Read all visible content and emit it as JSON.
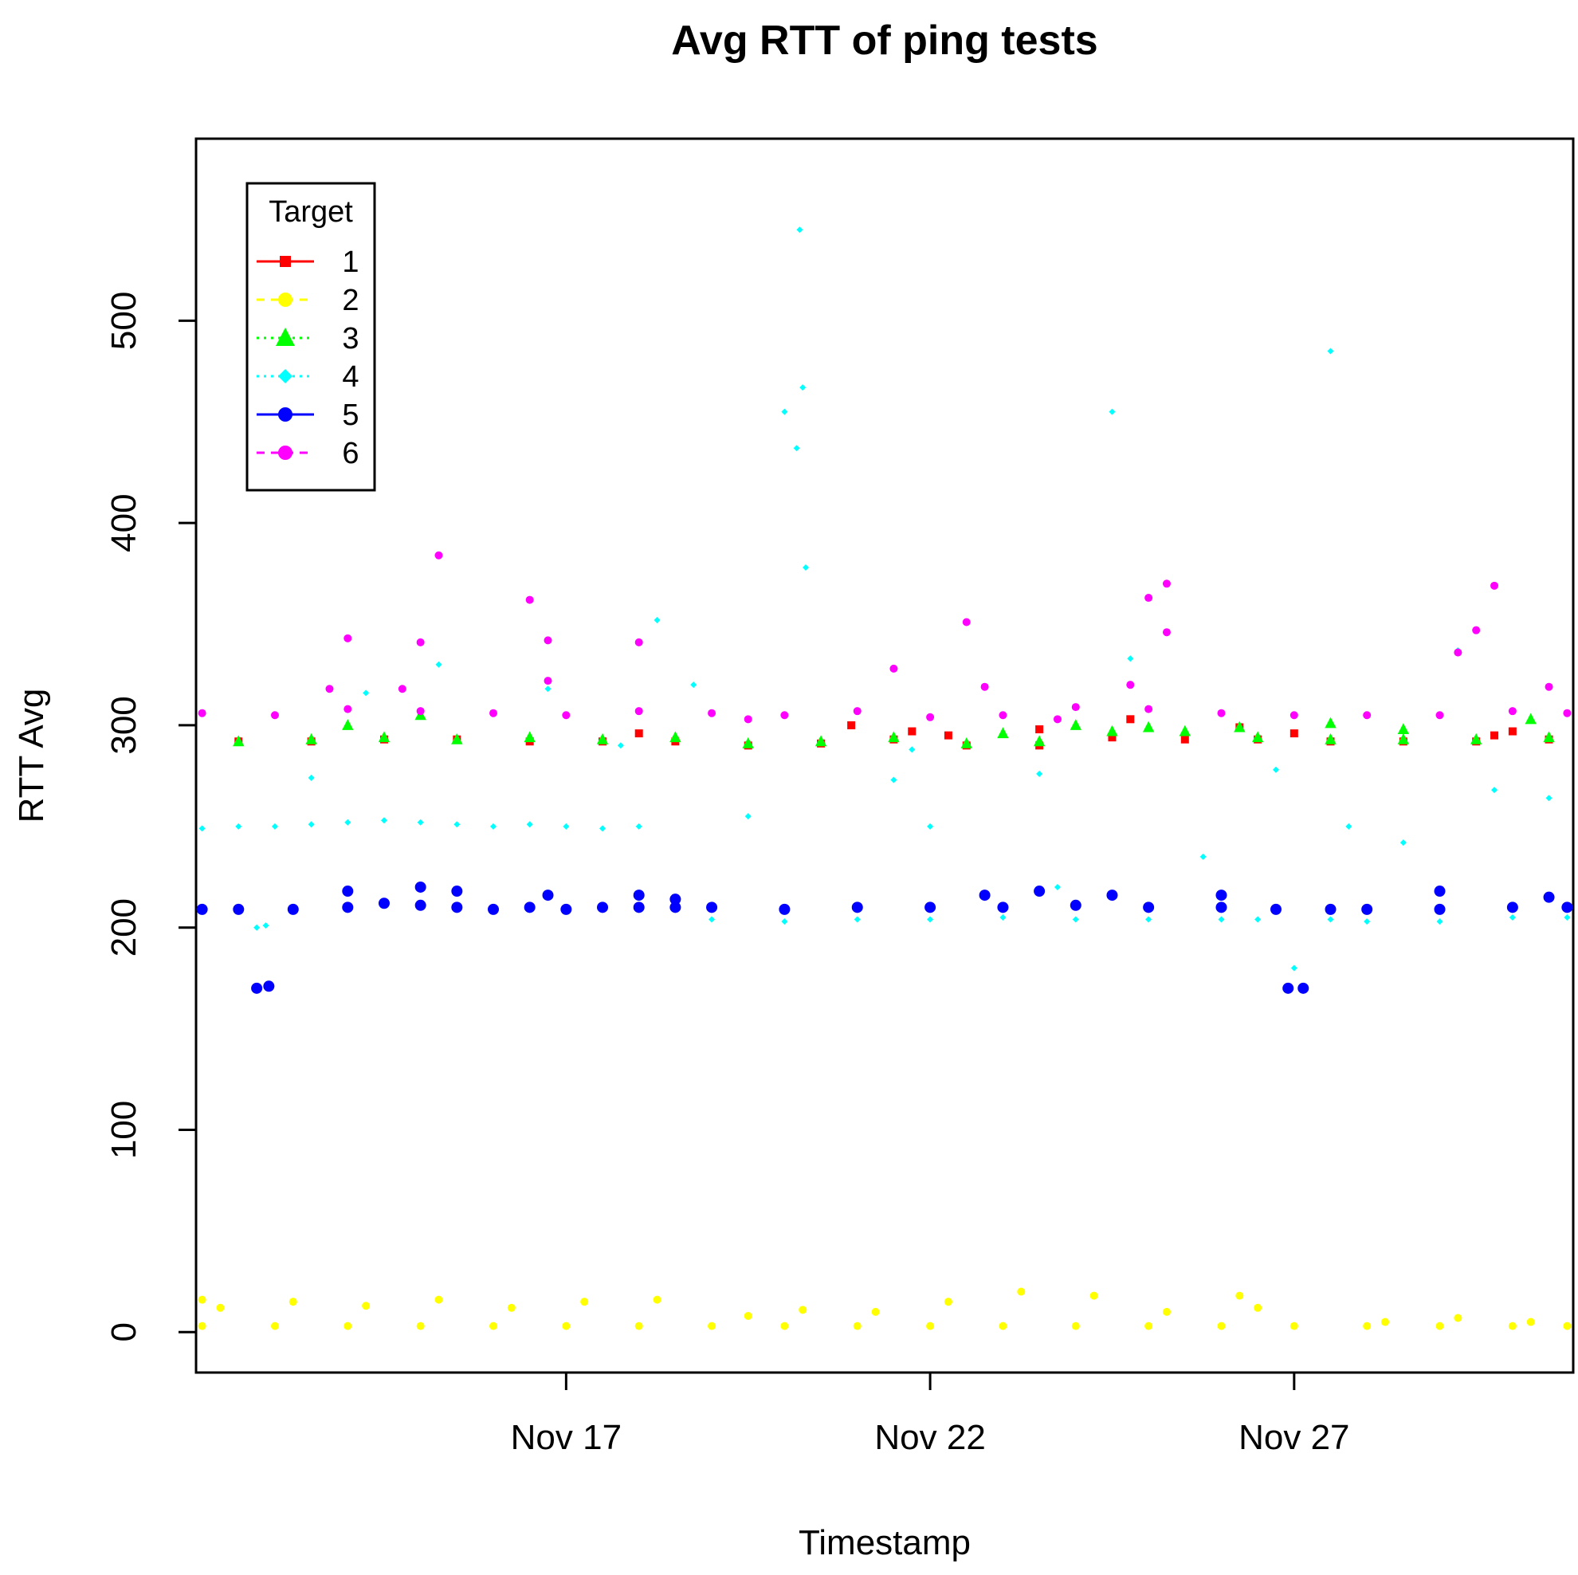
{
  "chart_data": {
    "type": "scatter",
    "title": "Avg RTT of ping tests",
    "xlabel": "Timestamp",
    "ylabel": "RTT Avg",
    "x_axis": {
      "kind": "date",
      "ticks": [
        {
          "date": "2014-11-17",
          "label": "Nov 17"
        },
        {
          "date": "2014-11-22",
          "label": "Nov 22"
        },
        {
          "date": "2014-11-27",
          "label": "Nov 27"
        }
      ],
      "xlim": [
        "2014-11-11T22:00",
        "2014-11-30T20:00"
      ]
    },
    "y_axis": {
      "ticks": [
        0,
        100,
        200,
        300,
        400,
        500
      ],
      "ylim": [
        -20,
        590
      ]
    },
    "grid": false,
    "legend": {
      "title": "Target",
      "placement": "top-left",
      "entries": [
        "1",
        "2",
        "3",
        "4",
        "5",
        "6"
      ]
    },
    "series": [
      {
        "name": "1",
        "color": "#ff0000",
        "marker": "square",
        "line": "solid",
        "points": [
          [
            "2014-11-12T12:00",
            292
          ],
          [
            "2014-11-13T12:00",
            292
          ],
          [
            "2014-11-14T12:00",
            293
          ],
          [
            "2014-11-15T12:00",
            293
          ],
          [
            "2014-11-16T12:00",
            292
          ],
          [
            "2014-11-17T12:00",
            292
          ],
          [
            "2014-11-18T12:00",
            292
          ],
          [
            "2014-11-19T12:00",
            290
          ],
          [
            "2014-11-20T12:00",
            291
          ],
          [
            "2014-11-21T12:00",
            293
          ],
          [
            "2014-11-22T12:00",
            290
          ],
          [
            "2014-11-23T12:00",
            290
          ],
          [
            "2014-11-24T12:00",
            294
          ],
          [
            "2014-11-25T12:00",
            293
          ],
          [
            "2014-11-26T12:00",
            293
          ],
          [
            "2014-11-27T12:00",
            292
          ],
          [
            "2014-11-28T12:00",
            292
          ],
          [
            "2014-11-29T12:00",
            292
          ],
          [
            "2014-11-30T12:00",
            293
          ],
          [
            "2014-11-20T22:00",
            300
          ],
          [
            "2014-11-21T18:00",
            297
          ],
          [
            "2014-11-22T06:00",
            295
          ],
          [
            "2014-11-23T12:00",
            298
          ],
          [
            "2014-11-24T18:00",
            303
          ],
          [
            "2014-11-26T06:00",
            299
          ],
          [
            "2014-11-27T00:00",
            296
          ],
          [
            "2014-11-29T18:00",
            295
          ],
          [
            "2014-11-18T00:00",
            296
          ],
          [
            "2014-11-30T00:00",
            297
          ]
        ]
      },
      {
        "name": "2",
        "color": "#ffff00",
        "marker": "circle",
        "line": "dashed",
        "points": [
          [
            "2014-11-12T00:00",
            3
          ],
          [
            "2014-11-13T00:00",
            3
          ],
          [
            "2014-11-14T00:00",
            3
          ],
          [
            "2014-11-15T00:00",
            3
          ],
          [
            "2014-11-16T00:00",
            3
          ],
          [
            "2014-11-17T00:00",
            3
          ],
          [
            "2014-11-18T00:00",
            3
          ],
          [
            "2014-11-19T00:00",
            3
          ],
          [
            "2014-11-20T00:00",
            3
          ],
          [
            "2014-11-21T00:00",
            3
          ],
          [
            "2014-11-22T00:00",
            3
          ],
          [
            "2014-11-23T00:00",
            3
          ],
          [
            "2014-11-24T00:00",
            3
          ],
          [
            "2014-11-25T00:00",
            3
          ],
          [
            "2014-11-26T00:00",
            3
          ],
          [
            "2014-11-27T00:00",
            3
          ],
          [
            "2014-11-28T00:00",
            3
          ],
          [
            "2014-11-29T00:00",
            3
          ],
          [
            "2014-11-30T00:00",
            3
          ],
          [
            "2014-11-30T18:00",
            3
          ],
          [
            "2014-11-12T00:00",
            16
          ],
          [
            "2014-11-12T06:00",
            12
          ],
          [
            "2014-11-13T06:00",
            15
          ],
          [
            "2014-11-14T06:00",
            13
          ],
          [
            "2014-11-15T06:00",
            16
          ],
          [
            "2014-11-16T06:00",
            12
          ],
          [
            "2014-11-17T06:00",
            15
          ],
          [
            "2014-11-18T06:00",
            16
          ],
          [
            "2014-11-19T12:00",
            8
          ],
          [
            "2014-11-20T06:00",
            11
          ],
          [
            "2014-11-21T06:00",
            10
          ],
          [
            "2014-11-22T06:00",
            15
          ],
          [
            "2014-11-23T06:00",
            20
          ],
          [
            "2014-11-24T06:00",
            18
          ],
          [
            "2014-11-25T06:00",
            10
          ],
          [
            "2014-11-26T06:00",
            18
          ],
          [
            "2014-11-26T12:00",
            12
          ],
          [
            "2014-11-28T06:00",
            5
          ],
          [
            "2014-11-29T06:00",
            7
          ],
          [
            "2014-11-30T06:00",
            5
          ]
        ]
      },
      {
        "name": "3",
        "color": "#00ff00",
        "marker": "triangle",
        "line": "dotted",
        "points": [
          [
            "2014-11-12T12:00",
            292
          ],
          [
            "2014-11-13T12:00",
            293
          ],
          [
            "2014-11-14T12:00",
            294
          ],
          [
            "2014-11-15T12:00",
            293
          ],
          [
            "2014-11-16T12:00",
            294
          ],
          [
            "2014-11-17T12:00",
            293
          ],
          [
            "2014-11-18T12:00",
            294
          ],
          [
            "2014-11-19T12:00",
            291
          ],
          [
            "2014-11-20T12:00",
            292
          ],
          [
            "2014-11-21T12:00",
            294
          ],
          [
            "2014-11-22T12:00",
            291
          ],
          [
            "2014-11-23T12:00",
            292
          ],
          [
            "2014-11-24T12:00",
            297
          ],
          [
            "2014-11-25T12:00",
            297
          ],
          [
            "2014-11-26T12:00",
            294
          ],
          [
            "2014-11-27T12:00",
            293
          ],
          [
            "2014-11-28T12:00",
            293
          ],
          [
            "2014-11-29T12:00",
            293
          ],
          [
            "2014-11-30T12:00",
            294
          ],
          [
            "2014-11-14T00:00",
            300
          ],
          [
            "2014-11-15T00:00",
            305
          ],
          [
            "2014-11-23T00:00",
            296
          ],
          [
            "2014-11-24T00:00",
            300
          ],
          [
            "2014-11-25T00:00",
            299
          ],
          [
            "2014-11-26T06:00",
            299
          ],
          [
            "2014-11-27T12:00",
            301
          ],
          [
            "2014-11-28T12:00",
            298
          ],
          [
            "2014-11-30T06:00",
            303
          ]
        ]
      },
      {
        "name": "4",
        "color": "#00ffff",
        "marker": "diamond",
        "line": "dotted",
        "points": [
          [
            "2014-11-12T00:00",
            249
          ],
          [
            "2014-11-12T12:00",
            250
          ],
          [
            "2014-11-13T00:00",
            250
          ],
          [
            "2014-11-13T12:00",
            251
          ],
          [
            "2014-11-14T00:00",
            252
          ],
          [
            "2014-11-14T12:00",
            253
          ],
          [
            "2014-11-15T00:00",
            252
          ],
          [
            "2014-11-15T12:00",
            251
          ],
          [
            "2014-11-16T00:00",
            250
          ],
          [
            "2014-11-16T12:00",
            251
          ],
          [
            "2014-11-17T00:00",
            250
          ],
          [
            "2014-11-17T12:00",
            249
          ],
          [
            "2014-11-18T00:00",
            250
          ],
          [
            "2014-11-12T18:00",
            200
          ],
          [
            "2014-11-12T21:00",
            201
          ],
          [
            "2014-11-19T00:00",
            204
          ],
          [
            "2014-11-20T00:00",
            203
          ],
          [
            "2014-11-21T00:00",
            204
          ],
          [
            "2014-11-22T00:00",
            204
          ],
          [
            "2014-11-23T00:00",
            205
          ],
          [
            "2014-11-24T00:00",
            204
          ],
          [
            "2014-11-25T00:00",
            204
          ],
          [
            "2014-11-26T00:00",
            204
          ],
          [
            "2014-11-26T12:00",
            204
          ],
          [
            "2014-11-27T00:00",
            180
          ],
          [
            "2014-11-27T12:00",
            204
          ],
          [
            "2014-11-28T00:00",
            203
          ],
          [
            "2014-11-29T00:00",
            203
          ],
          [
            "2014-11-30T00:00",
            205
          ],
          [
            "2014-11-30T18:00",
            205
          ],
          [
            "2014-11-20T05:00",
            545
          ],
          [
            "2014-11-20T06:00",
            467
          ],
          [
            "2014-11-20T04:00",
            437
          ],
          [
            "2014-11-20T00:00",
            455
          ],
          [
            "2014-11-20T07:00",
            378
          ],
          [
            "2014-11-27T12:00",
            485
          ],
          [
            "2014-11-24T12:00",
            455
          ],
          [
            "2014-11-18T06:00",
            352
          ],
          [
            "2014-11-24T18:00",
            333
          ],
          [
            "2014-11-15T06:00",
            330
          ],
          [
            "2014-11-14T06:00",
            316
          ],
          [
            "2014-11-13T12:00",
            274
          ],
          [
            "2014-11-18T18:00",
            320
          ],
          [
            "2014-11-19T12:00",
            255
          ],
          [
            "2014-11-21T12:00",
            273
          ],
          [
            "2014-11-22T00:00",
            250
          ],
          [
            "2014-11-23T12:00",
            276
          ],
          [
            "2014-11-25T18:00",
            235
          ],
          [
            "2014-11-26T18:00",
            278
          ],
          [
            "2014-11-27T18:00",
            250
          ],
          [
            "2014-11-28T12:00",
            242
          ],
          [
            "2014-11-29T06:00",
            337
          ],
          [
            "2014-11-29T18:00",
            268
          ],
          [
            "2014-11-30T12:00",
            264
          ],
          [
            "2014-11-16T18:00",
            318
          ],
          [
            "2014-11-17T18:00",
            290
          ],
          [
            "2014-11-21T18:00",
            288
          ],
          [
            "2014-11-23T18:00",
            220
          ]
        ]
      },
      {
        "name": "5",
        "color": "#0000ff",
        "marker": "circle",
        "line": "solid",
        "points": [
          [
            "2014-11-12T00:00",
            209
          ],
          [
            "2014-11-12T12:00",
            209
          ],
          [
            "2014-11-12T18:00",
            170
          ],
          [
            "2014-11-12T22:00",
            171
          ],
          [
            "2014-11-13T06:00",
            209
          ],
          [
            "2014-11-14T00:00",
            210
          ],
          [
            "2014-11-14T12:00",
            212
          ],
          [
            "2014-11-15T00:00",
            211
          ],
          [
            "2014-11-15T12:00",
            210
          ],
          [
            "2014-11-16T00:00",
            209
          ],
          [
            "2014-11-16T12:00",
            210
          ],
          [
            "2014-11-17T00:00",
            209
          ],
          [
            "2014-11-17T12:00",
            210
          ],
          [
            "2014-11-18T00:00",
            210
          ],
          [
            "2014-11-18T12:00",
            210
          ],
          [
            "2014-11-19T00:00",
            210
          ],
          [
            "2014-11-20T00:00",
            209
          ],
          [
            "2014-11-21T00:00",
            210
          ],
          [
            "2014-11-22T00:00",
            210
          ],
          [
            "2014-11-23T00:00",
            210
          ],
          [
            "2014-11-24T00:00",
            211
          ],
          [
            "2014-11-25T00:00",
            210
          ],
          [
            "2014-11-26T00:00",
            210
          ],
          [
            "2014-11-26T18:00",
            209
          ],
          [
            "2014-11-26T22:00",
            170
          ],
          [
            "2014-11-27T03:00",
            170
          ],
          [
            "2014-11-27T12:00",
            209
          ],
          [
            "2014-11-28T00:00",
            209
          ],
          [
            "2014-11-29T00:00",
            209
          ],
          [
            "2014-11-30T00:00",
            210
          ],
          [
            "2014-11-30T18:00",
            210
          ],
          [
            "2014-11-14T00:00",
            218
          ],
          [
            "2014-11-15T00:00",
            220
          ],
          [
            "2014-11-15T12:00",
            218
          ],
          [
            "2014-11-16T18:00",
            216
          ],
          [
            "2014-11-18T00:00",
            216
          ],
          [
            "2014-11-18T12:00",
            214
          ],
          [
            "2014-11-22T18:00",
            216
          ],
          [
            "2014-11-23T12:00",
            218
          ],
          [
            "2014-11-24T12:00",
            216
          ],
          [
            "2014-11-26T00:00",
            216
          ],
          [
            "2014-11-29T00:00",
            218
          ],
          [
            "2014-11-30T12:00",
            215
          ]
        ]
      },
      {
        "name": "6",
        "color": "#ff00ff",
        "marker": "circle",
        "line": "dashed",
        "points": [
          [
            "2014-11-12T00:00",
            306
          ],
          [
            "2014-11-13T00:00",
            305
          ],
          [
            "2014-11-14T00:00",
            308
          ],
          [
            "2014-11-15T00:00",
            307
          ],
          [
            "2014-11-16T00:00",
            306
          ],
          [
            "2014-11-17T00:00",
            305
          ],
          [
            "2014-11-18T00:00",
            307
          ],
          [
            "2014-11-19T00:00",
            306
          ],
          [
            "2014-11-19T12:00",
            303
          ],
          [
            "2014-11-20T00:00",
            305
          ],
          [
            "2014-11-21T00:00",
            307
          ],
          [
            "2014-11-22T00:00",
            304
          ],
          [
            "2014-11-23T00:00",
            305
          ],
          [
            "2014-11-23T18:00",
            303
          ],
          [
            "2014-11-24T00:00",
            309
          ],
          [
            "2014-11-25T00:00",
            308
          ],
          [
            "2014-11-26T00:00",
            306
          ],
          [
            "2014-11-27T00:00",
            305
          ],
          [
            "2014-11-28T00:00",
            305
          ],
          [
            "2014-11-29T00:00",
            305
          ],
          [
            "2014-11-30T00:00",
            307
          ],
          [
            "2014-11-30T18:00",
            306
          ],
          [
            "2014-11-15T06:00",
            384
          ],
          [
            "2014-11-16T12:00",
            362
          ],
          [
            "2014-11-16T18:00",
            342
          ],
          [
            "2014-11-15T00:00",
            341
          ],
          [
            "2014-11-14T00:00",
            343
          ],
          [
            "2014-11-18T00:00",
            341
          ],
          [
            "2014-11-22T12:00",
            351
          ],
          [
            "2014-11-25T06:00",
            370
          ],
          [
            "2014-11-25T00:00",
            363
          ],
          [
            "2014-11-25T06:00",
            346
          ],
          [
            "2014-11-29T18:00",
            369
          ],
          [
            "2014-11-29T12:00",
            347
          ],
          [
            "2014-11-29T06:00",
            336
          ],
          [
            "2014-11-21T12:00",
            328
          ],
          [
            "2014-11-16T18:00",
            322
          ],
          [
            "2014-11-22T18:00",
            319
          ],
          [
            "2014-11-24T18:00",
            320
          ],
          [
            "2014-11-30T12:00",
            319
          ],
          [
            "2014-11-13T18:00",
            318
          ],
          [
            "2014-11-14T18:00",
            318
          ]
        ]
      }
    ]
  }
}
